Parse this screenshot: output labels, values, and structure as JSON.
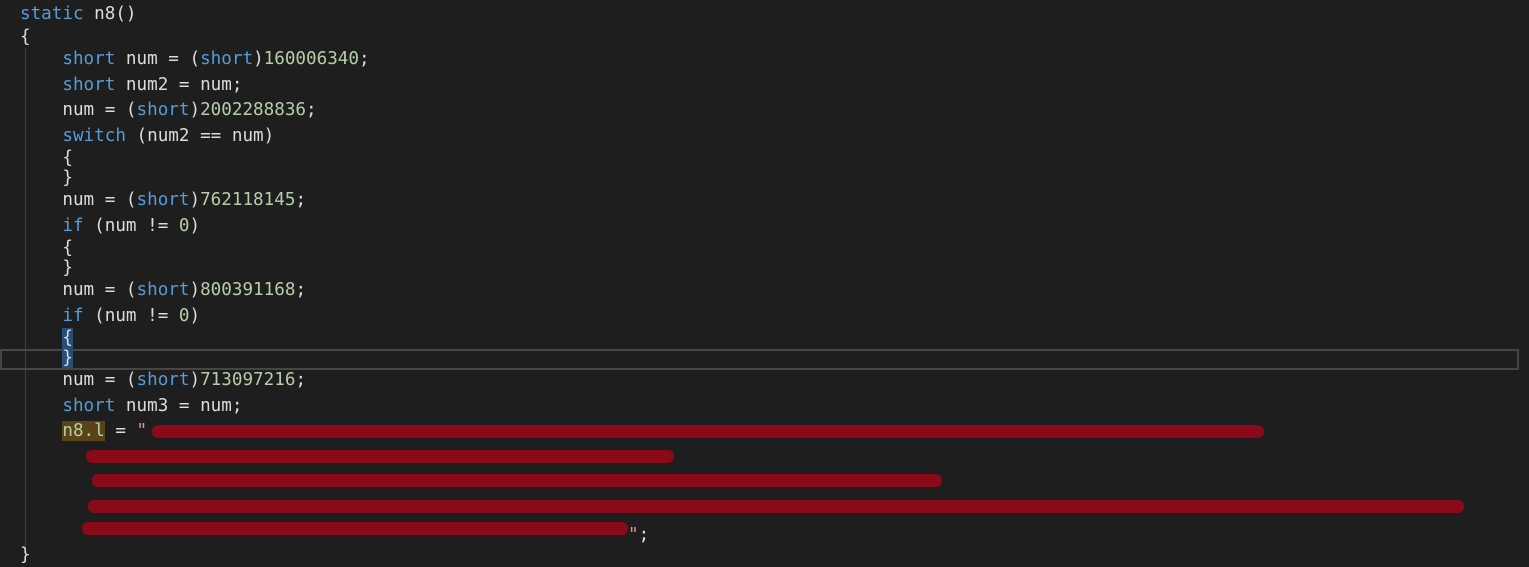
{
  "editor": {
    "lines": [
      [
        {
          "text": "static",
          "color": "#569cd6"
        },
        {
          "text": " n8()"
        }
      ],
      [
        {
          "text": "{"
        }
      ],
      [
        {
          "text": "    "
        },
        {
          "text": "short",
          "color": "#569cd6"
        },
        {
          "text": " num = ("
        },
        {
          "text": "short",
          "color": "#569cd6"
        },
        {
          "text": ")"
        },
        {
          "text": "160006340",
          "color": "#b5cea8"
        },
        {
          "text": ";"
        }
      ],
      [
        {
          "text": "    "
        },
        {
          "text": "short",
          "color": "#569cd6"
        },
        {
          "text": " num2 = num;"
        }
      ],
      [
        {
          "text": "    num = ("
        },
        {
          "text": "short",
          "color": "#569cd6"
        },
        {
          "text": ")"
        },
        {
          "text": "2002288836",
          "color": "#b5cea8"
        },
        {
          "text": ";"
        }
      ],
      [
        {
          "text": "    "
        },
        {
          "text": "switch",
          "color": "#569cd6"
        },
        {
          "text": " (num2 == num)"
        }
      ],
      [
        {
          "text": "    {"
        }
      ],
      [
        {
          "text": "    }"
        }
      ],
      [
        {
          "text": "    num = ("
        },
        {
          "text": "short",
          "color": "#569cd6"
        },
        {
          "text": ")"
        },
        {
          "text": "762118145",
          "color": "#b5cea8"
        },
        {
          "text": ";"
        }
      ],
      [
        {
          "text": "    "
        },
        {
          "text": "if",
          "color": "#569cd6"
        },
        {
          "text": " (num != "
        },
        {
          "text": "0",
          "color": "#b5cea8"
        },
        {
          "text": ")"
        }
      ],
      [
        {
          "text": "    {"
        }
      ],
      [
        {
          "text": "    }"
        }
      ],
      [
        {
          "text": "    num = ("
        },
        {
          "text": "short",
          "color": "#569cd6"
        },
        {
          "text": ")"
        },
        {
          "text": "800391168",
          "color": "#b5cea8"
        },
        {
          "text": ";"
        }
      ],
      [
        {
          "text": "    "
        },
        {
          "text": "if",
          "color": "#569cd6"
        },
        {
          "text": " (num != "
        },
        {
          "text": "0",
          "color": "#b5cea8"
        },
        {
          "text": ")"
        }
      ],
      [
        {
          "text": "    "
        },
        {
          "text": "{",
          "bg": "#264f78"
        }
      ],
      [
        {
          "text": "    "
        },
        {
          "text": "}",
          "bg": "#264f78"
        }
      ],
      [
        {
          "text": "    num = ("
        },
        {
          "text": "short",
          "color": "#569cd6"
        },
        {
          "text": ")"
        },
        {
          "text": "713097216",
          "color": "#b5cea8"
        },
        {
          "text": ";"
        }
      ],
      [
        {
          "text": "    "
        },
        {
          "text": "short",
          "color": "#569cd6"
        },
        {
          "text": " num3 = num;"
        }
      ],
      [
        {
          "text": "    "
        },
        {
          "text": "n8.l",
          "color": "#b5cea8",
          "bg": "#5a4316"
        },
        {
          "text": " = "
        },
        {
          "text": "\"",
          "color": "#d69d85"
        }
      ],
      [
        {
          "text": "}"
        }
      ]
    ],
    "string_tail": [
      {
        "text": "\"",
        "color": "#d69d85"
      },
      {
        "text": ";"
      }
    ]
  }
}
